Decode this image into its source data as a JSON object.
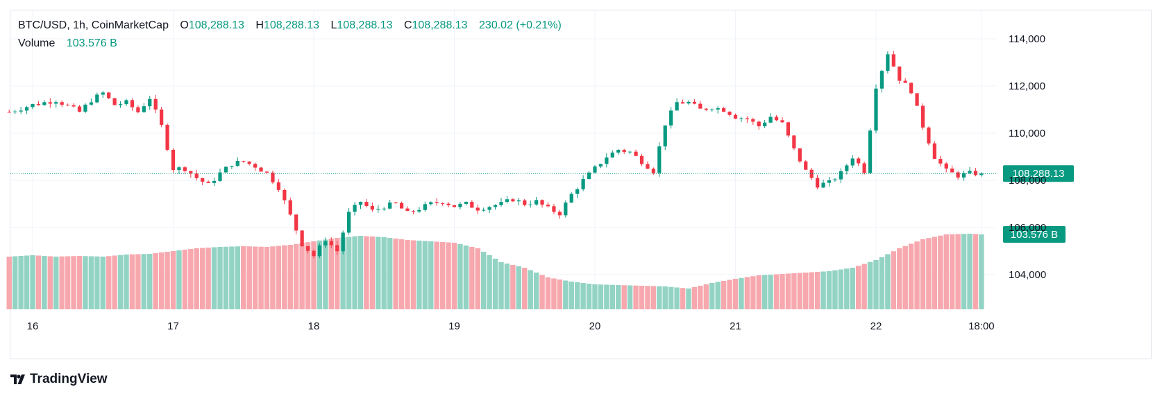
{
  "header": {
    "symbol_line": "BTC/USD, 1h, CoinMarketCap",
    "open_label": "O",
    "open": "108,288.13",
    "high_label": "H",
    "high": "108,288.13",
    "low_label": "L",
    "low": "108,288.13",
    "close_label": "C",
    "close": "108,288.13",
    "change": "230.02 (+0.21%)",
    "volume_label": "Volume",
    "volume_value": "103.576 B"
  },
  "brand": {
    "name": "TradingView"
  },
  "colors": {
    "up": "#089981",
    "down": "#f23645",
    "up_vol": "#93d3c4",
    "down_vol": "#f7a8ae",
    "grid": "#f0f3fa",
    "axis_text": "#131722"
  },
  "chart_data": {
    "type": "candlestick",
    "title": "BTC/USD, 1h, CoinMarketCap",
    "interval": "1h",
    "price_axis": {
      "ylim": [
        102000,
        115000
      ],
      "ticks": [
        104000,
        106000,
        108000,
        110000,
        112000,
        114000
      ],
      "tick_labels": [
        "104,000",
        "106,000",
        "108,000",
        "110,000",
        "112,000",
        "114,000"
      ]
    },
    "x_axis": {
      "tick_labels": [
        "16",
        "17",
        "18",
        "19",
        "20",
        "21",
        "22",
        "18:00"
      ],
      "tick_positions_hours": [
        0,
        24,
        48,
        72,
        96,
        120,
        144,
        162
      ]
    },
    "last_price": {
      "value": 108288.13,
      "label": "108,288.13"
    },
    "last_volume": {
      "label": "103.576 B"
    },
    "volume_scale": {
      "ylim": [
        0,
        180
      ]
    },
    "anchor_closes": [
      [
        -4,
        110900
      ],
      [
        0,
        111200
      ],
      [
        4,
        111400
      ],
      [
        8,
        110900
      ],
      [
        10,
        111400
      ],
      [
        12,
        111700
      ],
      [
        14,
        111200
      ],
      [
        16,
        111300
      ],
      [
        18,
        110900
      ],
      [
        20,
        111500
      ],
      [
        22,
        110300
      ],
      [
        24,
        108500
      ],
      [
        26,
        108500
      ],
      [
        28,
        108100
      ],
      [
        30,
        107800
      ],
      [
        32,
        108300
      ],
      [
        34,
        108700
      ],
      [
        36,
        108800
      ],
      [
        38,
        108600
      ],
      [
        40,
        108300
      ],
      [
        42,
        107700
      ],
      [
        44,
        106500
      ],
      [
        46,
        105300
      ],
      [
        48,
        104800
      ],
      [
        50,
        105500
      ],
      [
        52,
        105000
      ],
      [
        54,
        106600
      ],
      [
        56,
        107100
      ],
      [
        58,
        106700
      ],
      [
        60,
        106900
      ],
      [
        62,
        107000
      ],
      [
        64,
        106600
      ],
      [
        66,
        106800
      ],
      [
        68,
        107000
      ],
      [
        70,
        107100
      ],
      [
        72,
        106900
      ],
      [
        74,
        107000
      ],
      [
        76,
        106800
      ],
      [
        78,
        106900
      ],
      [
        80,
        107000
      ],
      [
        82,
        107200
      ],
      [
        84,
        107000
      ],
      [
        86,
        107100
      ],
      [
        88,
        106800
      ],
      [
        90,
        106600
      ],
      [
        92,
        107400
      ],
      [
        94,
        108000
      ],
      [
        96,
        108500
      ],
      [
        98,
        109000
      ],
      [
        100,
        109300
      ],
      [
        102,
        109200
      ],
      [
        104,
        108800
      ],
      [
        106,
        108400
      ],
      [
        108,
        110400
      ],
      [
        110,
        111300
      ],
      [
        112,
        111300
      ],
      [
        114,
        111000
      ],
      [
        116,
        111100
      ],
      [
        118,
        111000
      ],
      [
        120,
        110700
      ],
      [
        122,
        110600
      ],
      [
        124,
        110300
      ],
      [
        126,
        110700
      ],
      [
        128,
        110400
      ],
      [
        130,
        109300
      ],
      [
        132,
        108400
      ],
      [
        134,
        107800
      ],
      [
        136,
        107900
      ],
      [
        138,
        108300
      ],
      [
        140,
        109000
      ],
      [
        142,
        108400
      ],
      [
        144,
        112000
      ],
      [
        146,
        113400
      ],
      [
        148,
        112300
      ],
      [
        150,
        111800
      ],
      [
        152,
        110300
      ],
      [
        154,
        109000
      ],
      [
        156,
        108400
      ],
      [
        158,
        108200
      ],
      [
        160,
        108300
      ],
      [
        162,
        108288.13
      ]
    ],
    "volume_anchors": [
      [
        -4,
        76
      ],
      [
        0,
        78
      ],
      [
        4,
        76
      ],
      [
        8,
        77
      ],
      [
        12,
        76
      ],
      [
        16,
        79
      ],
      [
        20,
        80
      ],
      [
        24,
        84
      ],
      [
        28,
        88
      ],
      [
        32,
        90
      ],
      [
        36,
        91
      ],
      [
        40,
        90
      ],
      [
        44,
        93
      ],
      [
        48,
        98
      ],
      [
        52,
        103
      ],
      [
        56,
        106
      ],
      [
        60,
        104
      ],
      [
        64,
        100
      ],
      [
        68,
        98
      ],
      [
        72,
        96
      ],
      [
        76,
        88
      ],
      [
        80,
        68
      ],
      [
        84,
        60
      ],
      [
        88,
        46
      ],
      [
        92,
        40
      ],
      [
        96,
        36
      ],
      [
        100,
        35
      ],
      [
        104,
        34
      ],
      [
        108,
        33
      ],
      [
        112,
        30
      ],
      [
        116,
        38
      ],
      [
        120,
        44
      ],
      [
        124,
        49
      ],
      [
        128,
        51
      ],
      [
        132,
        53
      ],
      [
        136,
        55
      ],
      [
        140,
        60
      ],
      [
        144,
        71
      ],
      [
        148,
        88
      ],
      [
        152,
        101
      ],
      [
        156,
        108
      ],
      [
        160,
        109
      ],
      [
        162,
        108
      ]
    ],
    "hours_start": -4,
    "hours_end": 162
  }
}
